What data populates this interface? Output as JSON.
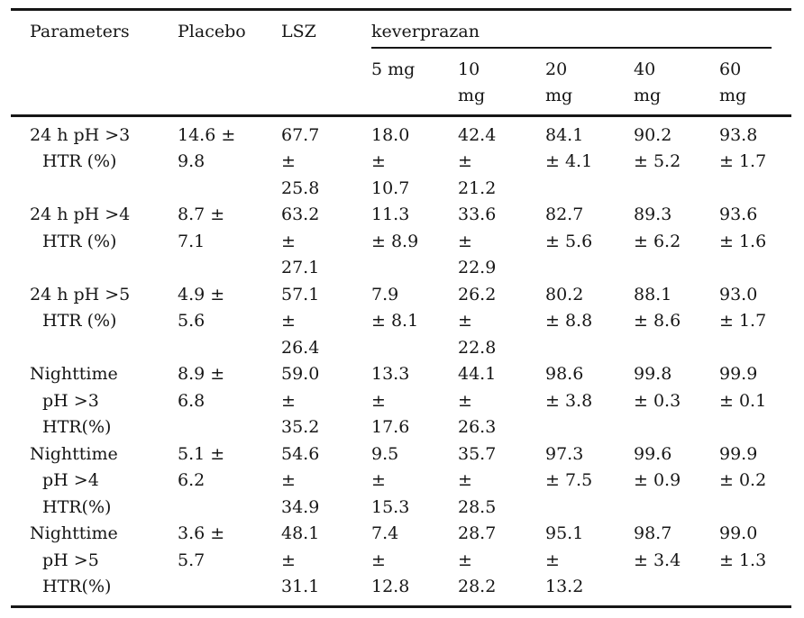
{
  "table": {
    "header": {
      "parameters": "Parameters",
      "placebo": "Placebo",
      "lsz": "LSZ",
      "group": "keverprazan",
      "doses": [
        [
          "5 mg"
        ],
        [
          "10",
          "mg"
        ],
        [
          "20",
          "mg"
        ],
        [
          "40",
          "mg"
        ],
        [
          "60",
          "mg"
        ]
      ]
    },
    "rows": [
      {
        "parameter": [
          "24 h pH >3",
          "HTR (%)"
        ],
        "cells": [
          [
            "14.6 ±",
            "9.8"
          ],
          [
            "67.7",
            "±",
            "25.8"
          ],
          [
            "18.0",
            "±",
            "10.7"
          ],
          [
            "42.4",
            "±",
            "21.2"
          ],
          [
            "84.1",
            "± 4.1"
          ],
          [
            "90.2",
            "± 5.2"
          ],
          [
            "93.8",
            "± 1.7"
          ]
        ]
      },
      {
        "parameter": [
          "24 h pH >4",
          "HTR (%)"
        ],
        "cells": [
          [
            "8.7 ±",
            "7.1"
          ],
          [
            "63.2",
            "±",
            "27.1"
          ],
          [
            "11.3",
            "± 8.9"
          ],
          [
            "33.6",
            "±",
            "22.9"
          ],
          [
            "82.7",
            "± 5.6"
          ],
          [
            "89.3",
            "± 6.2"
          ],
          [
            "93.6",
            "± 1.6"
          ]
        ]
      },
      {
        "parameter": [
          "24 h pH >5",
          "HTR (%)"
        ],
        "cells": [
          [
            "4.9 ±",
            "5.6"
          ],
          [
            "57.1",
            "±",
            "26.4"
          ],
          [
            "7.9",
            "± 8.1"
          ],
          [
            "26.2",
            "±",
            "22.8"
          ],
          [
            "80.2",
            "± 8.8"
          ],
          [
            "88.1",
            "± 8.6"
          ],
          [
            "93.0",
            "± 1.7"
          ]
        ]
      },
      {
        "parameter": [
          "Nighttime",
          "pH >3",
          "HTR(%)"
        ],
        "cells": [
          [
            "8.9 ±",
            "6.8"
          ],
          [
            "59.0",
            "±",
            "35.2"
          ],
          [
            "13.3",
            "±",
            "17.6"
          ],
          [
            "44.1",
            "±",
            "26.3"
          ],
          [
            "98.6",
            "± 3.8"
          ],
          [
            "99.8",
            "± 0.3"
          ],
          [
            "99.9",
            "± 0.1"
          ]
        ]
      },
      {
        "parameter": [
          "Nighttime",
          "pH >4",
          "HTR(%)"
        ],
        "cells": [
          [
            "5.1 ±",
            "6.2"
          ],
          [
            "54.6",
            "±",
            "34.9"
          ],
          [
            "9.5",
            "±",
            "15.3"
          ],
          [
            "35.7",
            "±",
            "28.5"
          ],
          [
            "97.3",
            "± 7.5"
          ],
          [
            "99.6",
            "± 0.9"
          ],
          [
            "99.9",
            "± 0.2"
          ]
        ]
      },
      {
        "parameter": [
          "Nighttime",
          "pH >5",
          "HTR(%)"
        ],
        "cells": [
          [
            "3.6 ±",
            "5.7"
          ],
          [
            "48.1",
            "±",
            "31.1"
          ],
          [
            "7.4",
            "±",
            "12.8"
          ],
          [
            "28.7",
            "±",
            "28.2"
          ],
          [
            "95.1",
            "±",
            "13.2"
          ],
          [
            "98.7",
            "± 3.4"
          ],
          [
            "99.0",
            "± 1.3"
          ]
        ]
      }
    ]
  },
  "colors": {
    "text": "#161616",
    "rule": "#161616",
    "background": "#ffffff"
  }
}
